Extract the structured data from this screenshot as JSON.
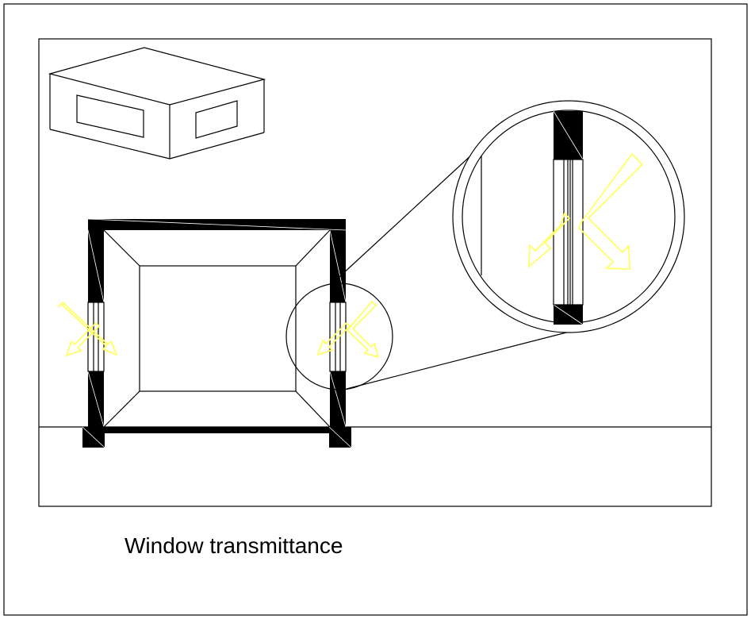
{
  "caption": "Window transmittance",
  "colors": {
    "line": "#000000",
    "arrow": "#ffff66",
    "background": "#ffffff"
  }
}
